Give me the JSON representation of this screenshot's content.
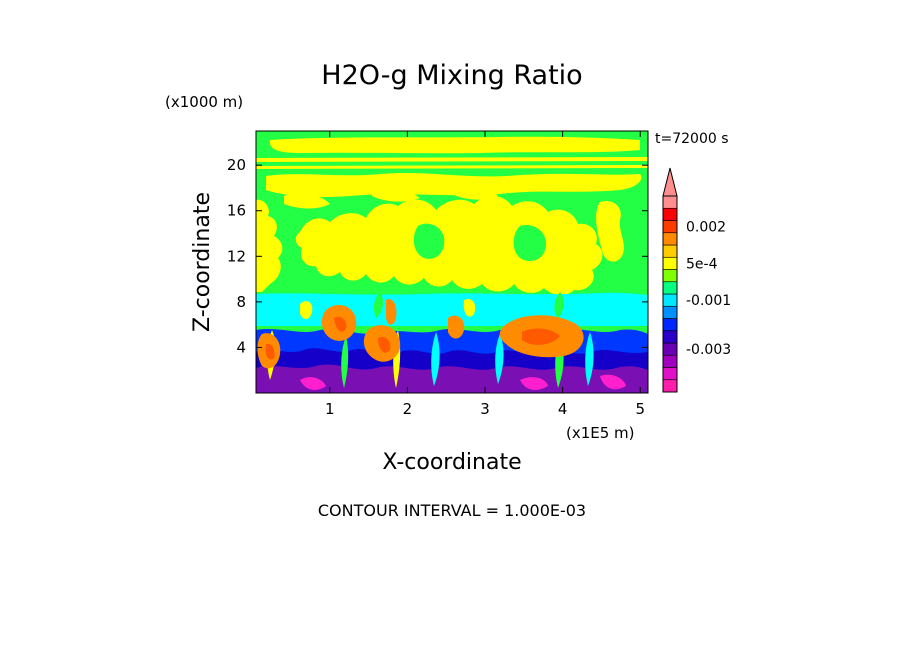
{
  "chart_data": {
    "type": "heatmap",
    "title": "H2O-g Mixing Ratio",
    "time_label": "t=72000 s",
    "xlabel": "X-coordinate",
    "ylabel": "Z-coordinate",
    "x_unit": "(x1E5 m)",
    "y_unit": "(x1000 m)",
    "footer": "CONTOUR INTERVAL = 1.000E-03",
    "xlim": [
      0.05,
      5.1
    ],
    "ylim": [
      0,
      23
    ],
    "x_ticks": [
      1,
      2,
      3,
      4,
      5
    ],
    "y_ticks": [
      4,
      8,
      12,
      16,
      20
    ],
    "x_tick_labels": [
      "1",
      "2",
      "3",
      "4",
      "5"
    ],
    "y_tick_labels": [
      "4",
      "8",
      "12",
      "16",
      "20"
    ],
    "colorbar": {
      "levels": [
        -0.006,
        -0.005,
        -0.004,
        -0.003,
        -0.0025,
        -0.002,
        -0.0015,
        -0.001,
        -0.0005,
        0.0,
        0.0005,
        0.001,
        0.0015,
        0.002,
        0.0025,
        0.003
      ],
      "colors": [
        "#ff1faa",
        "#e010c8",
        "#a000c0",
        "#6a00b4",
        "#2a00c8",
        "#0026ff",
        "#0090ff",
        "#00e8ff",
        "#00ff80",
        "#80ff00",
        "#ffff00",
        "#ffcc00",
        "#ff8a00",
        "#ff3c00",
        "#ff0000",
        "#ff8f8f"
      ],
      "labels": [
        {
          "text": "0.002",
          "value": 0.002
        },
        {
          "text": "5e-4",
          "value": 0.0005
        },
        {
          "text": "-0.001",
          "value": -0.001
        },
        {
          "text": "-0.003",
          "value": -0.003
        }
      ],
      "extend": "max"
    },
    "field_palette": {
      "background": "#22ff44",
      "yellow": "#ffff00",
      "cyan": "#00ffff",
      "orange": "#ff8c00",
      "dark_orange": "#ff5a00",
      "blue": "#0038ff",
      "navy": "#1400c8",
      "purple": "#7a10b4",
      "magenta": "#ff1fcf"
    }
  }
}
